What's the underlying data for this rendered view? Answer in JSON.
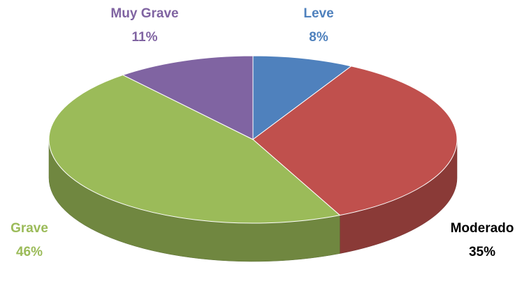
{
  "chart_data": {
    "type": "pie",
    "categories": [
      "Leve",
      "Moderado",
      "Grave",
      "Muy Grave"
    ],
    "values": [
      8,
      35,
      46,
      11
    ],
    "value_labels": [
      "8%",
      "35%",
      "46%",
      "11%"
    ],
    "colors": [
      "#4f81bd",
      "#c0504d",
      "#9bbb59",
      "#8064a2"
    ],
    "label_colors": [
      "#4f81bd",
      "#000000",
      "#9bbb59",
      "#8064a2"
    ]
  }
}
